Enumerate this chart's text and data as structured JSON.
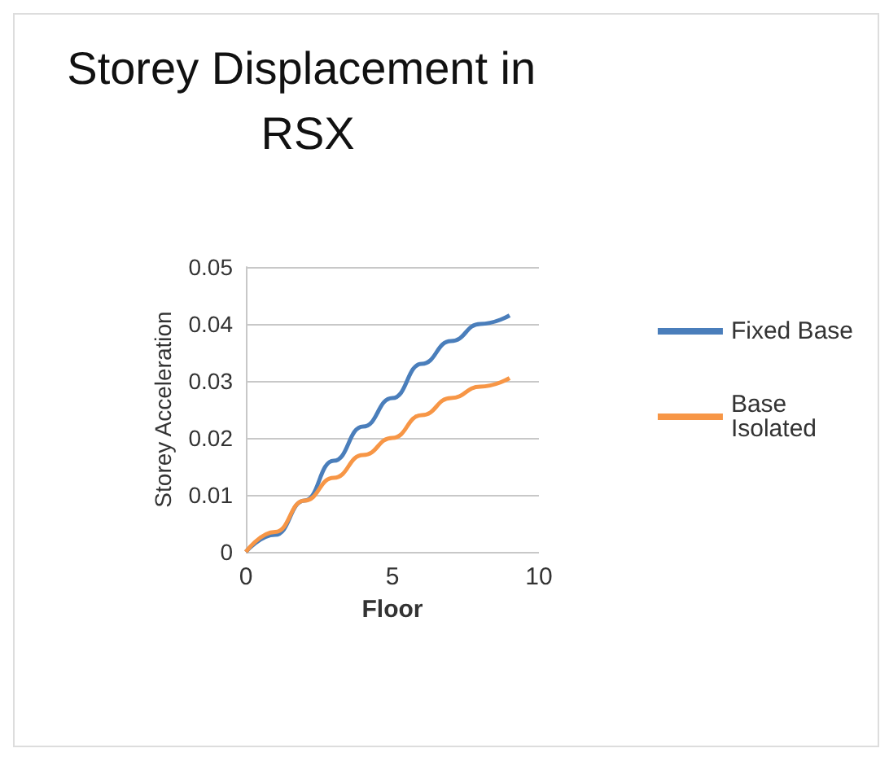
{
  "chart_data": {
    "type": "line",
    "title": "Storey Displacement in RSX",
    "xlabel": "Floor",
    "ylabel": "Storey Acceleration",
    "x": [
      0,
      1,
      2,
      3,
      4,
      5,
      6,
      7,
      8,
      9
    ],
    "series": [
      {
        "name": "Fixed Base",
        "color": "#4a7ebb",
        "values": [
          0,
          0.003,
          0.009,
          0.016,
          0.022,
          0.027,
          0.033,
          0.037,
          0.04,
          0.0415
        ]
      },
      {
        "name": "Base Isolated",
        "color": "#f79646",
        "values": [
          0,
          0.0035,
          0.009,
          0.013,
          0.017,
          0.02,
          0.024,
          0.027,
          0.029,
          0.0305
        ]
      }
    ],
    "xlim": [
      0,
      10
    ],
    "xticks": [
      0,
      5,
      10
    ],
    "ylim": [
      0,
      0.05
    ],
    "yticks": [
      0,
      0.01,
      0.02,
      0.03,
      0.04,
      0.05
    ],
    "grid": "y",
    "legend": "right",
    "marker": "none",
    "line_style": "solid"
  }
}
